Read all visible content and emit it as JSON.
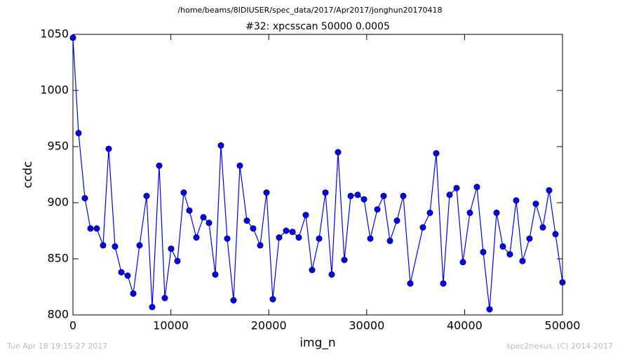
{
  "chart_data": {
    "type": "line",
    "suptitle": "/home/beams/8IDIUSER/spec_data/2017/Apr2017/jonghun20170418",
    "title": "#32: xpcsscan 50000 0.0005",
    "xlabel": "img_n",
    "ylabel": "ccdc",
    "footer_left": "Tue Apr 18 19:15:27 2017",
    "footer_right": "spec2nexus, (C) 2014-2017",
    "xlim": [
      0,
      50000
    ],
    "xticks": [
      0,
      10000,
      20000,
      30000,
      40000,
      50000
    ],
    "ylim": [
      800,
      1050
    ],
    "yticks": [
      800,
      850,
      900,
      950,
      1000,
      1050
    ],
    "grid": false,
    "series": [
      {
        "color": "#0000ff",
        "x": [
          0,
          573,
          1218,
          1791,
          2435,
          3080,
          3653,
          4298,
          4943,
          5587,
          6160,
          6805,
          7521,
          8094,
          8811,
          9384,
          10029,
          10673,
          11318,
          11891,
          12607,
          13324,
          13897,
          14542,
          15115,
          15759,
          16404,
          17049,
          17765,
          18410,
          19126,
          19771,
          20415,
          21060,
          21776,
          22421,
          23066,
          23782,
          24427,
          25143,
          25788,
          26433,
          27077,
          27722,
          28367,
          29083,
          29728,
          30372,
          31089,
          31734,
          32378,
          33095,
          33739,
          34456,
          35745,
          36461,
          37106,
          37822,
          38467,
          39183,
          39828,
          40544,
          41261,
          41905,
          42550,
          43266,
          43911,
          44628,
          45272,
          45917,
          46633,
          47278,
          47994,
          48639,
          49284,
          50000
        ],
        "values": [
          1047,
          962,
          904,
          877,
          877,
          862,
          948,
          861,
          838,
          835,
          819,
          862,
          906,
          807,
          933,
          815,
          859,
          848,
          909,
          893,
          869,
          887,
          882,
          836,
          951,
          868,
          813,
          933,
          884,
          877,
          862,
          909,
          814,
          869,
          875,
          874,
          869,
          889,
          840,
          868,
          909,
          836,
          945,
          849,
          906,
          907,
          903,
          868,
          894,
          906,
          866,
          884,
          906,
          828,
          878,
          891,
          944,
          828,
          907,
          913,
          847,
          891,
          914,
          856,
          805,
          891,
          861,
          854,
          902,
          848,
          868,
          899,
          878,
          911,
          872,
          829
        ]
      }
    ]
  }
}
